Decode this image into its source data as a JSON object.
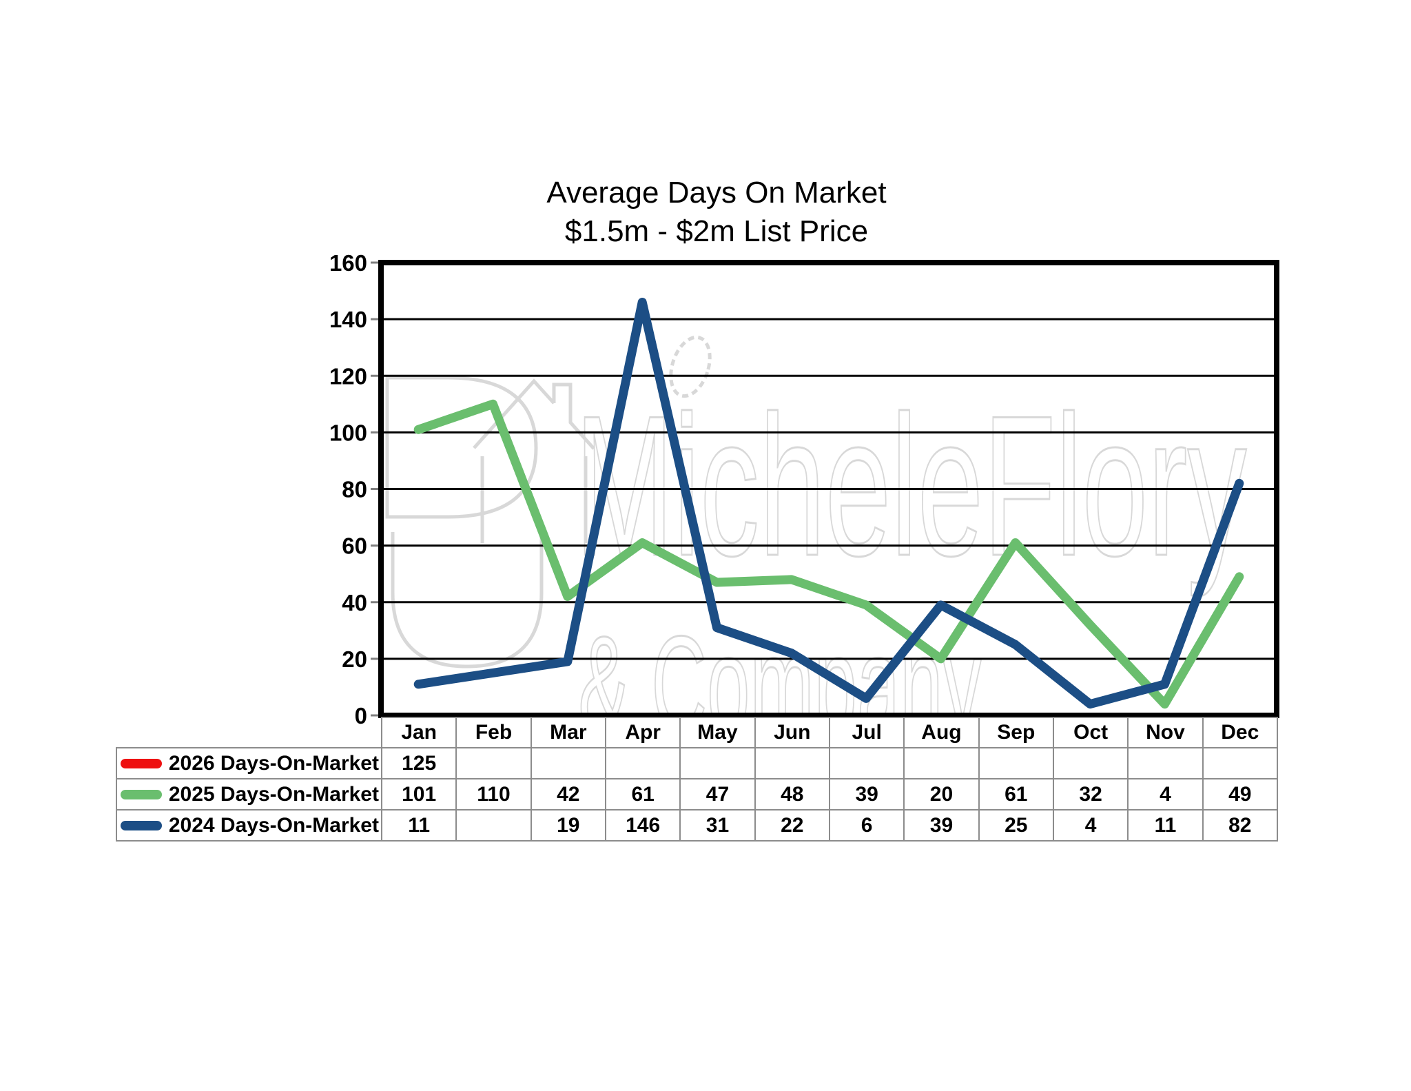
{
  "title_line1": "Average Days On Market",
  "title_line2": "$1.5m - $2m List Price",
  "watermark": {
    "line1": "MicheleFlory",
    "line2": "& Company"
  },
  "axis": {
    "yticks": [
      "0",
      "20",
      "40",
      "60",
      "80",
      "100",
      "120",
      "140",
      "160"
    ]
  },
  "colors": {
    "series_2026": "#ee1111",
    "series_2025": "#6abe6e",
    "series_2024": "#1c4e85",
    "gridline": "#000000",
    "table_border": "#8c8c8c",
    "watermark": "#d8d8d8"
  },
  "chart_data": {
    "type": "line",
    "title": "Average Days On Market",
    "subtitle": "$1.5m - $2m List Price",
    "xlabel": "",
    "ylabel": "",
    "ylim": [
      0,
      160
    ],
    "ytick_step": 20,
    "grid": true,
    "legend_position": "table-left-below",
    "categories": [
      "Jan",
      "Feb",
      "Mar",
      "Apr",
      "May",
      "Jun",
      "Jul",
      "Aug",
      "Sep",
      "Oct",
      "Nov",
      "Dec"
    ],
    "series": [
      {
        "name": "2026 Days-On-Market",
        "color": "#ee1111",
        "values": [
          125,
          null,
          null,
          null,
          null,
          null,
          null,
          null,
          null,
          null,
          null,
          null
        ]
      },
      {
        "name": "2025 Days-On-Market",
        "color": "#6abe6e",
        "values": [
          101,
          110,
          42,
          61,
          47,
          48,
          39,
          20,
          61,
          32,
          4,
          49
        ]
      },
      {
        "name": "2024 Days-On-Market",
        "color": "#1c4e85",
        "values": [
          11,
          null,
          19,
          146,
          31,
          22,
          6,
          39,
          25,
          4,
          11,
          82
        ]
      }
    ]
  },
  "table": {
    "columns": [
      "Jan",
      "Feb",
      "Mar",
      "Apr",
      "May",
      "Jun",
      "Jul",
      "Aug",
      "Sep",
      "Oct",
      "Nov",
      "Dec"
    ],
    "rows": [
      {
        "year": "2026",
        "label": "2026 Days-On-Market",
        "key_color": "#ee1111",
        "cells": [
          "125",
          "",
          "",
          "",
          "",
          "",
          "",
          "",
          "",
          "",
          "",
          ""
        ]
      },
      {
        "year": "2025",
        "label": "2025 Days-On-Market",
        "key_color": "#6abe6e",
        "cells": [
          "101",
          "110",
          "42",
          "61",
          "47",
          "48",
          "39",
          "20",
          "61",
          "32",
          "4",
          "49"
        ]
      },
      {
        "year": "2024",
        "label": "2024 Days-On-Market",
        "key_color": "#1c4e85",
        "cells": [
          "11",
          "",
          "19",
          "146",
          "31",
          "22",
          "6",
          "39",
          "25",
          "4",
          "11",
          "82"
        ]
      }
    ]
  }
}
